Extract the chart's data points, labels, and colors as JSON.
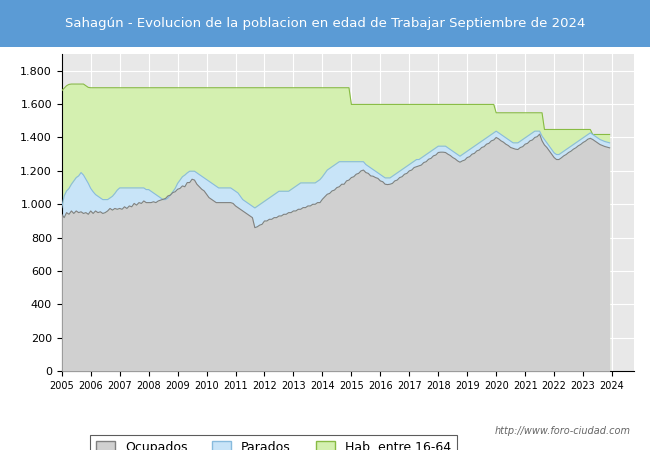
{
  "title": "Sahagún - Evolucion de la poblacion en edad de Trabajar Septiembre de 2024",
  "title_bg_color": "#5b9bd5",
  "title_text_color": "#ffffff",
  "ylim": [
    0,
    1900
  ],
  "yticks": [
    0,
    200,
    400,
    600,
    800,
    1000,
    1200,
    1400,
    1600,
    1800
  ],
  "ytick_labels": [
    "0",
    "200",
    "400",
    "600",
    "800",
    "1.000",
    "1.200",
    "1.400",
    "1.600",
    "1.800"
  ],
  "background_color": "#ffffff",
  "plot_bg_color": "#e8e8e8",
  "grid_color": "#ffffff",
  "color_hab_fill": "#d4f0b0",
  "color_hab_line": "#88bb44",
  "color_parados_fill": "#c8e4f8",
  "color_parados_line": "#88bbdd",
  "color_ocup_fill": "#d0d0d0",
  "color_ocup_line": "#808080",
  "legend_labels": [
    "Ocupados",
    "Parados",
    "Hab. entre 16-64"
  ],
  "url_text": "http://www.foro-ciudad.com",
  "start_year": 2005,
  "ocupados": [
    940,
    920,
    950,
    940,
    960,
    945,
    960,
    950,
    955,
    945,
    950,
    940,
    960,
    945,
    960,
    950,
    955,
    945,
    950,
    960,
    975,
    965,
    975,
    970,
    975,
    970,
    985,
    975,
    990,
    985,
    1005,
    995,
    1010,
    1005,
    1020,
    1010,
    1010,
    1010,
    1015,
    1010,
    1020,
    1025,
    1030,
    1035,
    1050,
    1055,
    1070,
    1075,
    1090,
    1095,
    1110,
    1105,
    1130,
    1130,
    1150,
    1145,
    1120,
    1105,
    1090,
    1080,
    1060,
    1040,
    1030,
    1020,
    1010,
    1010,
    1010,
    1010,
    1010,
    1010,
    1010,
    1005,
    990,
    980,
    970,
    960,
    950,
    940,
    930,
    920,
    860,
    865,
    875,
    880,
    900,
    900,
    910,
    910,
    920,
    920,
    930,
    930,
    940,
    940,
    950,
    950,
    960,
    960,
    970,
    970,
    980,
    980,
    990,
    990,
    1000,
    1000,
    1010,
    1010,
    1030,
    1045,
    1060,
    1065,
    1080,
    1085,
    1100,
    1105,
    1120,
    1120,
    1140,
    1145,
    1160,
    1165,
    1180,
    1185,
    1200,
    1205,
    1190,
    1185,
    1170,
    1168,
    1160,
    1155,
    1140,
    1135,
    1120,
    1118,
    1120,
    1125,
    1140,
    1145,
    1160,
    1165,
    1180,
    1185,
    1200,
    1205,
    1220,
    1225,
    1230,
    1235,
    1250,
    1255,
    1270,
    1275,
    1290,
    1295,
    1310,
    1312,
    1312,
    1310,
    1300,
    1292,
    1280,
    1272,
    1260,
    1252,
    1260,
    1265,
    1280,
    1285,
    1300,
    1305,
    1320,
    1325,
    1340,
    1345,
    1360,
    1365,
    1380,
    1385,
    1400,
    1392,
    1380,
    1372,
    1360,
    1352,
    1340,
    1335,
    1330,
    1328,
    1340,
    1345,
    1360,
    1365,
    1380,
    1385,
    1400,
    1405,
    1420,
    1380,
    1355,
    1340,
    1320,
    1300,
    1280,
    1268,
    1268,
    1278,
    1290,
    1298,
    1310,
    1318,
    1330,
    1338,
    1350,
    1358,
    1370,
    1378,
    1390,
    1395,
    1388,
    1378,
    1368,
    1358,
    1352,
    1346,
    1342,
    1338
  ],
  "parados": [
    980,
    1050,
    1080,
    1095,
    1120,
    1140,
    1160,
    1170,
    1190,
    1175,
    1150,
    1125,
    1095,
    1075,
    1058,
    1048,
    1038,
    1028,
    1028,
    1028,
    1038,
    1048,
    1065,
    1085,
    1098,
    1098,
    1098,
    1098,
    1098,
    1098,
    1098,
    1098,
    1098,
    1098,
    1098,
    1088,
    1088,
    1078,
    1068,
    1058,
    1048,
    1038,
    1028,
    1028,
    1038,
    1055,
    1075,
    1095,
    1125,
    1145,
    1165,
    1175,
    1188,
    1198,
    1198,
    1198,
    1188,
    1178,
    1168,
    1158,
    1148,
    1138,
    1128,
    1118,
    1108,
    1098,
    1098,
    1098,
    1098,
    1098,
    1098,
    1088,
    1078,
    1068,
    1048,
    1028,
    1018,
    1008,
    998,
    988,
    978,
    988,
    998,
    1008,
    1018,
    1028,
    1038,
    1048,
    1058,
    1068,
    1078,
    1078,
    1078,
    1078,
    1078,
    1088,
    1098,
    1108,
    1118,
    1128,
    1128,
    1128,
    1128,
    1128,
    1128,
    1128,
    1138,
    1148,
    1165,
    1185,
    1205,
    1215,
    1225,
    1235,
    1245,
    1255,
    1255,
    1255,
    1255,
    1255,
    1255,
    1255,
    1255,
    1255,
    1255,
    1255,
    1238,
    1228,
    1218,
    1208,
    1198,
    1188,
    1178,
    1168,
    1158,
    1158,
    1158,
    1168,
    1178,
    1188,
    1198,
    1208,
    1218,
    1228,
    1238,
    1248,
    1258,
    1268,
    1268,
    1278,
    1288,
    1298,
    1308,
    1318,
    1328,
    1338,
    1348,
    1348,
    1348,
    1348,
    1338,
    1328,
    1318,
    1308,
    1298,
    1288,
    1298,
    1308,
    1318,
    1328,
    1338,
    1348,
    1358,
    1368,
    1378,
    1388,
    1398,
    1408,
    1418,
    1428,
    1438,
    1428,
    1418,
    1408,
    1398,
    1388,
    1378,
    1368,
    1368,
    1368,
    1378,
    1388,
    1398,
    1408,
    1418,
    1428,
    1438,
    1438,
    1438,
    1408,
    1388,
    1368,
    1348,
    1328,
    1308,
    1298,
    1298,
    1308,
    1318,
    1328,
    1338,
    1348,
    1358,
    1368,
    1378,
    1388,
    1398,
    1408,
    1418,
    1428,
    1418,
    1408,
    1398,
    1388,
    1382,
    1376,
    1372,
    1368
  ],
  "hab1664": [
    1680,
    1695,
    1710,
    1718,
    1720,
    1720,
    1720,
    1720,
    1720,
    1720,
    1710,
    1700,
    1698,
    1698,
    1698,
    1698,
    1698,
    1698,
    1698,
    1698,
    1698,
    1698,
    1698,
    1698,
    1698,
    1698,
    1698,
    1698,
    1698,
    1698,
    1698,
    1698,
    1698,
    1698,
    1698,
    1698,
    1698,
    1698,
    1698,
    1698,
    1698,
    1698,
    1698,
    1698,
    1698,
    1698,
    1698,
    1698,
    1698,
    1698,
    1698,
    1698,
    1698,
    1698,
    1698,
    1698,
    1698,
    1698,
    1698,
    1698,
    1698,
    1698,
    1698,
    1698,
    1698,
    1698,
    1698,
    1698,
    1698,
    1698,
    1698,
    1698,
    1698,
    1698,
    1698,
    1698,
    1698,
    1698,
    1698,
    1698,
    1698,
    1698,
    1698,
    1698,
    1698,
    1698,
    1698,
    1698,
    1698,
    1698,
    1698,
    1698,
    1698,
    1698,
    1698,
    1698,
    1698,
    1698,
    1698,
    1698,
    1698,
    1698,
    1698,
    1698,
    1698,
    1698,
    1698,
    1698,
    1698,
    1698,
    1698,
    1698,
    1698,
    1698,
    1698,
    1698,
    1698,
    1698,
    1698,
    1698,
    1598,
    1598,
    1598,
    1598,
    1598,
    1598,
    1598,
    1598,
    1598,
    1598,
    1598,
    1598,
    1598,
    1598,
    1598,
    1598,
    1598,
    1598,
    1598,
    1598,
    1598,
    1598,
    1598,
    1598,
    1598,
    1598,
    1598,
    1598,
    1598,
    1598,
    1598,
    1598,
    1598,
    1598,
    1598,
    1598,
    1598,
    1598,
    1598,
    1598,
    1598,
    1598,
    1598,
    1598,
    1598,
    1598,
    1598,
    1598,
    1598,
    1598,
    1598,
    1598,
    1598,
    1598,
    1598,
    1598,
    1598,
    1598,
    1598,
    1598,
    1548,
    1548,
    1548,
    1548,
    1548,
    1548,
    1548,
    1548,
    1548,
    1548,
    1548,
    1548,
    1548,
    1548,
    1548,
    1548,
    1548,
    1548,
    1548,
    1548,
    1448,
    1448,
    1448,
    1448,
    1448,
    1448,
    1448,
    1448,
    1448,
    1448,
    1448,
    1448,
    1448,
    1448,
    1448,
    1448,
    1448,
    1448,
    1448,
    1448,
    1418,
    1418,
    1418,
    1418,
    1418,
    1418,
    1418,
    1418
  ]
}
